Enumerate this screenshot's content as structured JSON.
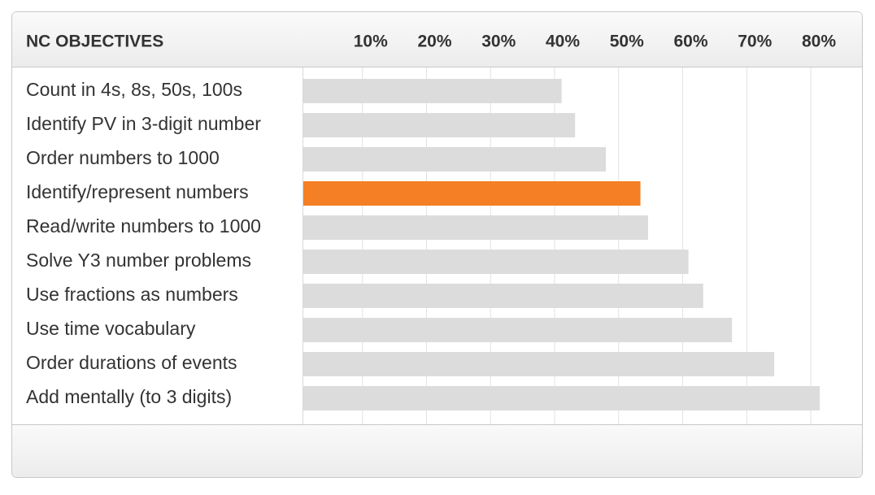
{
  "chart_data": {
    "type": "hbar",
    "title": "NC OBJECTIVES",
    "categories": [
      "Count in 4s, 8s, 50s, 100s",
      "Identify PV in 3-digit number",
      "Order numbers to 1000",
      "Identify/represent numbers",
      "Read/write numbers to 1000",
      "Solve Y3 number problems",
      "Use fractions as numbers",
      "Use time vocabulary",
      "Order durations of events",
      "Add mentally (to 3 digits)"
    ],
    "values": [
      41.1,
      43.2,
      48.0,
      53.4,
      54.6,
      60.9,
      63.2,
      67.7,
      74.3,
      81.4
    ],
    "colors": [
      "#dcdcdc",
      "#dcdcdc",
      "#dcdcdc",
      "#f47f24",
      "#dcdcdc",
      "#dcdcdc",
      "#dcdcdc",
      "#dcdcdc",
      "#dcdcdc",
      "#dcdcdc"
    ],
    "xlim": [
      0,
      88
    ],
    "xticks": [
      {
        "value": 10,
        "label": "10%"
      },
      {
        "value": 20,
        "label": "20%"
      },
      {
        "value": 30,
        "label": "30%"
      },
      {
        "value": 40,
        "label": "40%"
      },
      {
        "value": 50,
        "label": "50%"
      },
      {
        "value": 60,
        "label": "60%"
      },
      {
        "value": 70,
        "label": "70%"
      },
      {
        "value": 80,
        "label": "80%"
      }
    ],
    "grid": true
  }
}
